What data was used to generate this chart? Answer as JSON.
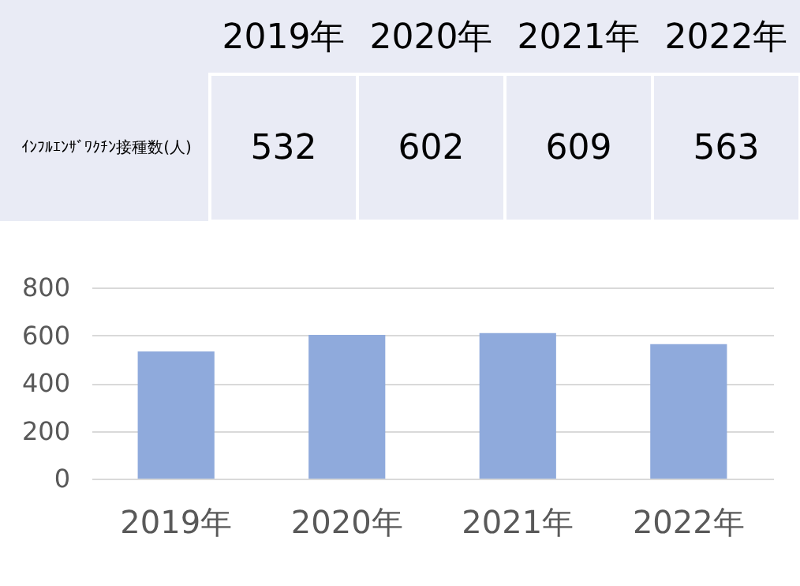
{
  "chart_data": [
    {
      "type": "heatmap",
      "categories": [
        "2019年",
        "2020年",
        "2021年",
        "2022年"
      ],
      "y_categories": [
        "ｲﾝﾌﾙｴﾝｻﾞﾜｸﾁﾝ接種数(人)"
      ],
      "cells": [
        [
          532,
          602,
          609,
          563
        ]
      ],
      "color": "#e9ebf5",
      "data_labels": true
    },
    {
      "type": "bar",
      "categories": [
        "2019年",
        "2020年",
        "2021年",
        "2022年"
      ],
      "values": [
        532,
        602,
        609,
        563
      ],
      "color": "#8faadc",
      "ylim": [
        0,
        800
      ],
      "yticks": [
        0,
        200,
        400,
        600,
        800
      ],
      "grid": "y"
    }
  ]
}
